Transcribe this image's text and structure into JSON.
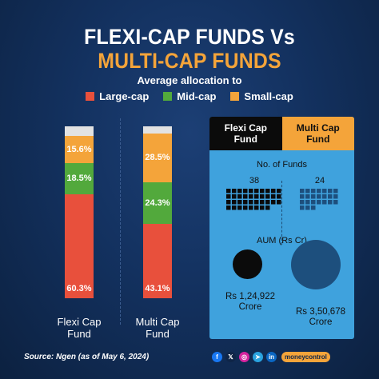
{
  "header": {
    "title_line1": "FLEXI-CAP FUNDS Vs",
    "title_line2": "MULTI-CAP FUNDS",
    "subtitle": "Average allocation to"
  },
  "chart_data": [
    {
      "type": "bar",
      "stacked": true,
      "title": "Average allocation to",
      "categories": [
        "Flexi Cap Fund",
        "Multi Cap Fund"
      ],
      "series": [
        {
          "name": "Large-cap",
          "color": "#e8503c",
          "values": [
            60.3,
            43.1
          ],
          "labels": [
            "60.3%",
            "43.1%"
          ]
        },
        {
          "name": "Mid-cap",
          "color": "#52a93c",
          "values": [
            18.5,
            24.3
          ],
          "labels": [
            "18.5%",
            "24.3%"
          ]
        },
        {
          "name": "Small-cap",
          "color": "#f4a43a",
          "values": [
            15.6,
            28.5
          ],
          "labels": [
            "15.6%",
            "28.5%"
          ]
        }
      ],
      "remainder_color": "#e2e2e2",
      "ylim": [
        0,
        100
      ],
      "legend_position": "top"
    },
    {
      "type": "table",
      "columns": [
        "Flexi Cap Fund",
        "Multi Cap Fund"
      ],
      "rows": [
        {
          "label": "No. of Funds",
          "values": [
            38,
            24
          ],
          "labels": [
            "38",
            "24"
          ]
        },
        {
          "label": "AUM (Rs Cr)",
          "values": [
            124922,
            350678
          ],
          "labels": [
            "Rs 1,24,922 Crore",
            "Rs 3,50,678 Crore"
          ]
        }
      ]
    }
  ],
  "legend": [
    {
      "label": "Large-cap",
      "color": "#e8503c"
    },
    {
      "label": "Mid-cap",
      "color": "#52a93c"
    },
    {
      "label": "Small-cap",
      "color": "#f4a43a"
    }
  ],
  "bars": {
    "flexi": {
      "name_line1": "Flexi Cap",
      "name_line2": "Fund"
    },
    "multi": {
      "name_line1": "Multi Cap",
      "name_line2": "Fund"
    }
  },
  "panel": {
    "head_flexi_line1": "Flexi Cap",
    "head_flexi_line2": "Fund",
    "head_multi_line1": "Multi Cap",
    "head_multi_line2": "Fund",
    "funds_label": "No. of Funds",
    "flexi_count": "38",
    "multi_count": "24",
    "aum_label": "AUM (Rs Cr)",
    "flexi_aum_line1": "Rs 1,24,922",
    "flexi_aum_line2": "Crore",
    "multi_aum_line1": "Rs 3,50,678",
    "multi_aum_line2": "Crore",
    "panel_color": "#3fa2dd",
    "flexi_color": "#0b0b0b",
    "multi_color": "#1d4f7d"
  },
  "footer": {
    "source": "Source: Ngen (as of May 6, 2024)",
    "social": [
      {
        "icon": "facebook-icon",
        "glyph": "f",
        "bg": "#1877f2",
        "fg": "#ffffff"
      },
      {
        "icon": "x-icon",
        "glyph": "𝕏",
        "bg": "#0f2547",
        "fg": "#ffffff"
      },
      {
        "icon": "instagram-icon",
        "glyph": "◎",
        "bg": "#d6249f",
        "fg": "#ffffff"
      },
      {
        "icon": "telegram-icon",
        "glyph": "➤",
        "bg": "#2aa3e0",
        "fg": "#ffffff"
      },
      {
        "icon": "linkedin-icon",
        "glyph": "in",
        "bg": "#0a66c2",
        "fg": "#ffffff"
      }
    ],
    "brand": "moneycontrol"
  }
}
